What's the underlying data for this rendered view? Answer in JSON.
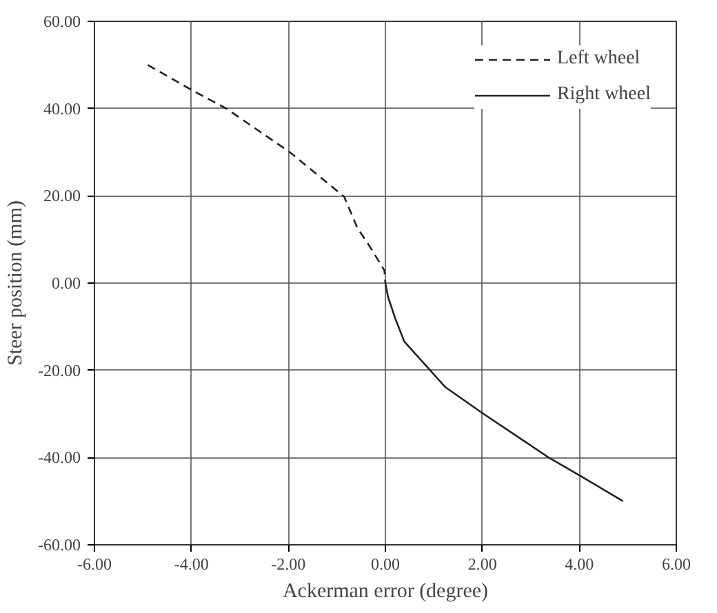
{
  "chart_data": {
    "type": "line",
    "xlabel": "Ackerman error (degree)",
    "ylabel": "Steer position (mm)",
    "xlim": [
      -6,
      6
    ],
    "ylim": [
      -60,
      60
    ],
    "xticks": [
      {
        "value": -6,
        "label": "-6.00"
      },
      {
        "value": -4,
        "label": "-4.00"
      },
      {
        "value": -2,
        "label": "-2.00"
      },
      {
        "value": 0,
        "label": "0.00"
      },
      {
        "value": 2,
        "label": "2.00"
      },
      {
        "value": 4,
        "label": "4.00"
      },
      {
        "value": 6,
        "label": "6.00"
      }
    ],
    "yticks": [
      {
        "value": -60,
        "label": "-60.00"
      },
      {
        "value": -40,
        "label": "-40.00"
      },
      {
        "value": -20,
        "label": "-20.00"
      },
      {
        "value": 0,
        "label": "0.00"
      },
      {
        "value": 20,
        "label": "20.00"
      },
      {
        "value": 40,
        "label": "40.00"
      },
      {
        "value": 60,
        "label": "60.00"
      }
    ],
    "grid": true,
    "legend": "top right",
    "marker": "none",
    "series": [
      {
        "name": "Left wheel",
        "color": "#222222",
        "line_style": "dashed",
        "x": [
          -4.9,
          -4.0,
          -3.28,
          -1.97,
          -0.85,
          -0.58,
          -0.3,
          -0.02,
          0
        ],
        "values": [
          50,
          44.3,
          40,
          30,
          19.8,
          12.7,
          8,
          2.9,
          0
        ]
      },
      {
        "name": "Right wheel",
        "color": "#222222",
        "line_style": "solid",
        "x": [
          0,
          0.05,
          0.2,
          0.39,
          1.23,
          2.0,
          3.37,
          3.99,
          4.9
        ],
        "values": [
          0,
          -3,
          -8,
          -13.4,
          -23.8,
          -29.8,
          -40,
          -44,
          -50
        ]
      }
    ]
  }
}
